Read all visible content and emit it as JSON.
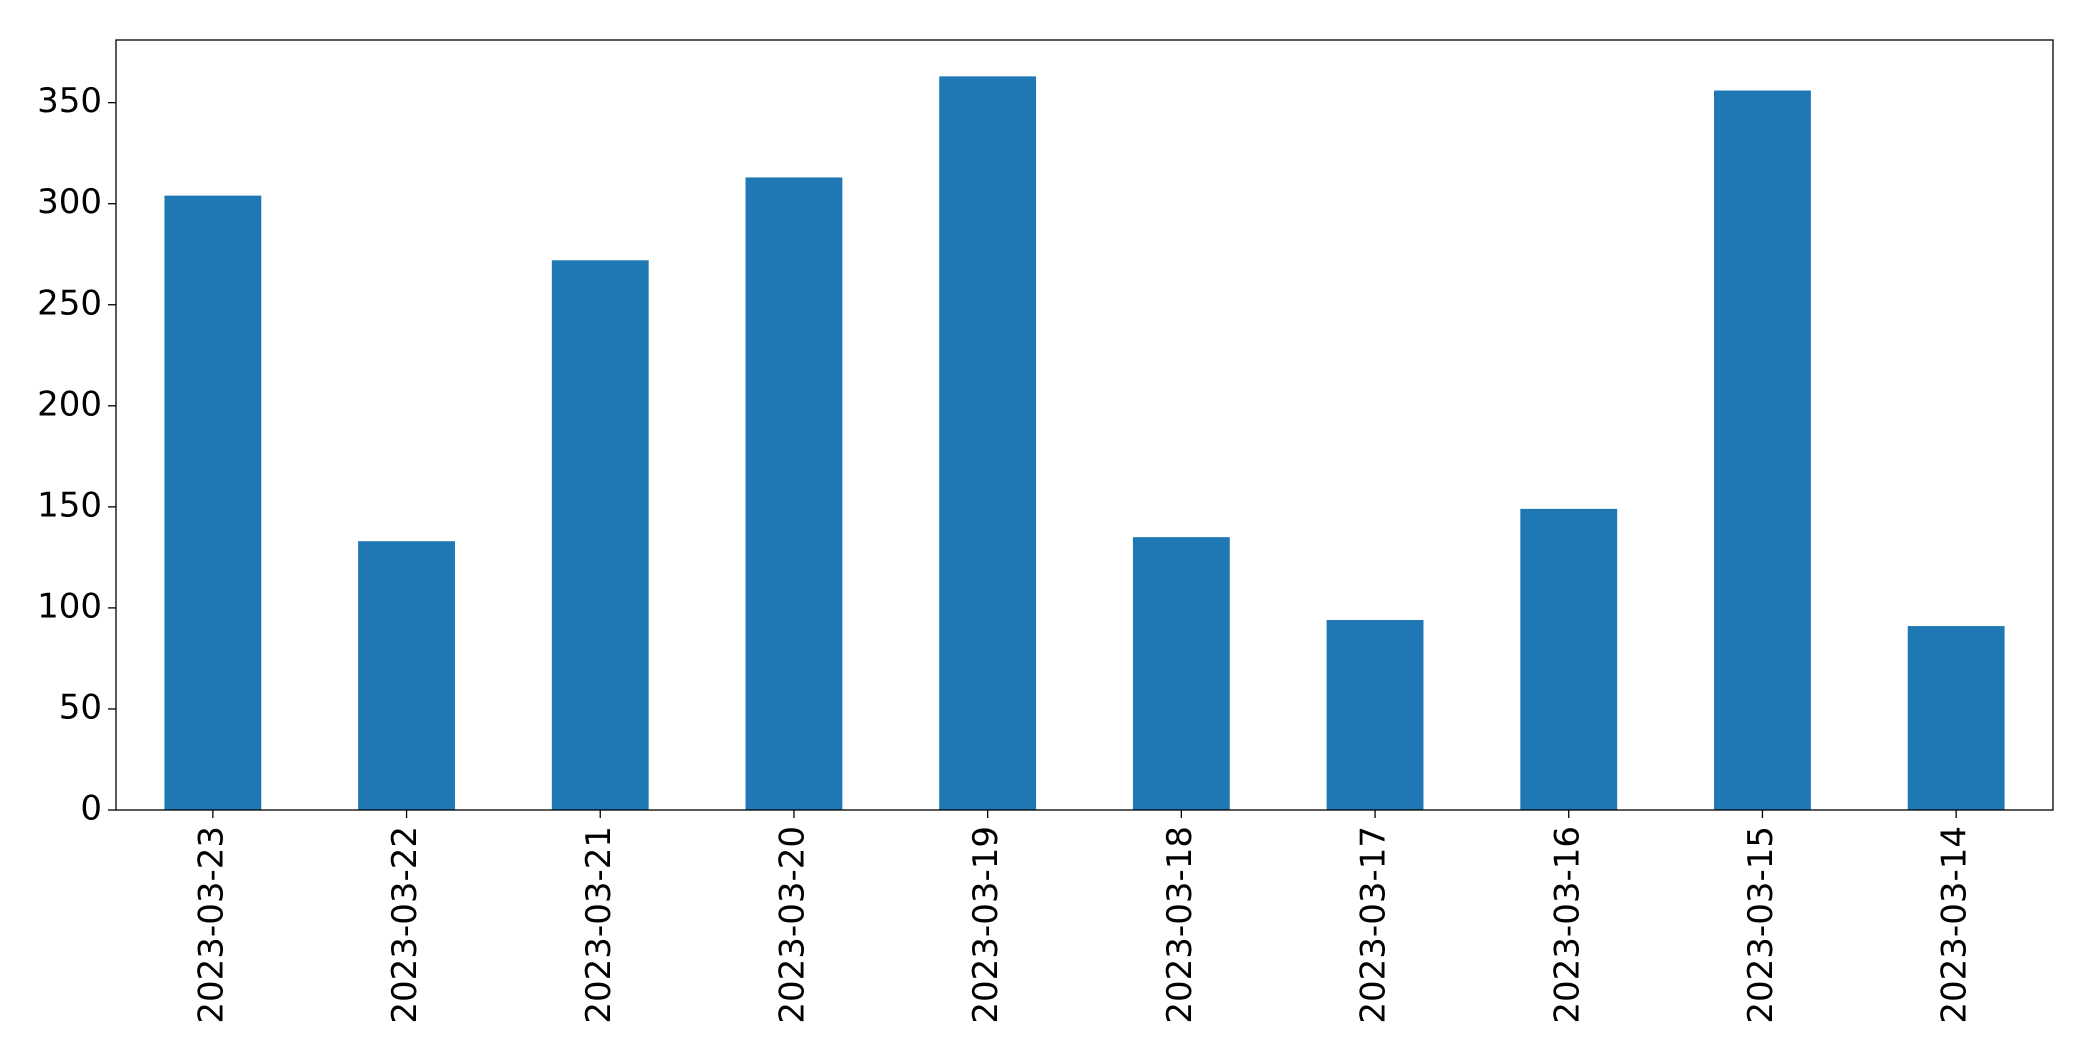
{
  "chart_data": {
    "type": "bar",
    "categories": [
      "2023-03-23",
      "2023-03-22",
      "2023-03-21",
      "2023-03-20",
      "2023-03-19",
      "2023-03-18",
      "2023-03-17",
      "2023-03-16",
      "2023-03-15",
      "2023-03-14"
    ],
    "values": [
      304,
      133,
      272,
      313,
      363,
      135,
      94,
      149,
      356,
      91
    ],
    "color": "#1f77b4",
    "ylim": [
      0,
      381
    ],
    "yticks": [
      0,
      50,
      100,
      150,
      200,
      250,
      300,
      350
    ],
    "grid": false
  }
}
